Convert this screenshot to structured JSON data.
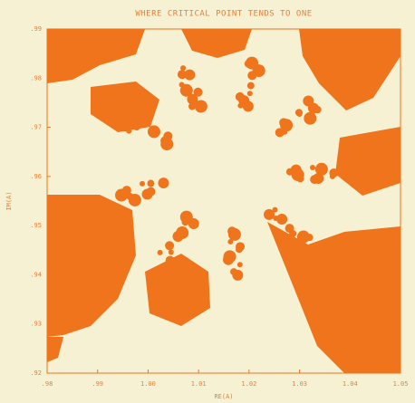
{
  "chart_data": {
    "type": "fractal",
    "title": "WHERE CRITICAL POINT TENDS TO ONE",
    "x_label": "RE(A)",
    "y_label": "IM(A)",
    "xlim": [
      0.98,
      1.05
    ],
    "ylim": [
      0.92,
      0.99
    ],
    "xticks": [
      {
        "value": 0.98,
        "label": ".98"
      },
      {
        "value": 0.99,
        "label": ".99"
      },
      {
        "value": 1.0,
        "label": "1.00"
      },
      {
        "value": 1.01,
        "label": "1.01"
      },
      {
        "value": 1.02,
        "label": "1.02"
      },
      {
        "value": 1.03,
        "label": "1.03"
      },
      {
        "value": 1.04,
        "label": "1.04"
      },
      {
        "value": 1.05,
        "label": "1.05"
      }
    ],
    "yticks": [
      {
        "value": 0.92,
        "label": ".92"
      },
      {
        "value": 0.93,
        "label": ".93"
      },
      {
        "value": 0.94,
        "label": ".94"
      },
      {
        "value": 0.95,
        "label": ".95"
      },
      {
        "value": 0.96,
        "label": ".96"
      },
      {
        "value": 0.97,
        "label": ".97"
      },
      {
        "value": 0.98,
        "label": ".98"
      },
      {
        "value": 0.99,
        "label": ".99"
      }
    ],
    "color": "#f0741c"
  }
}
